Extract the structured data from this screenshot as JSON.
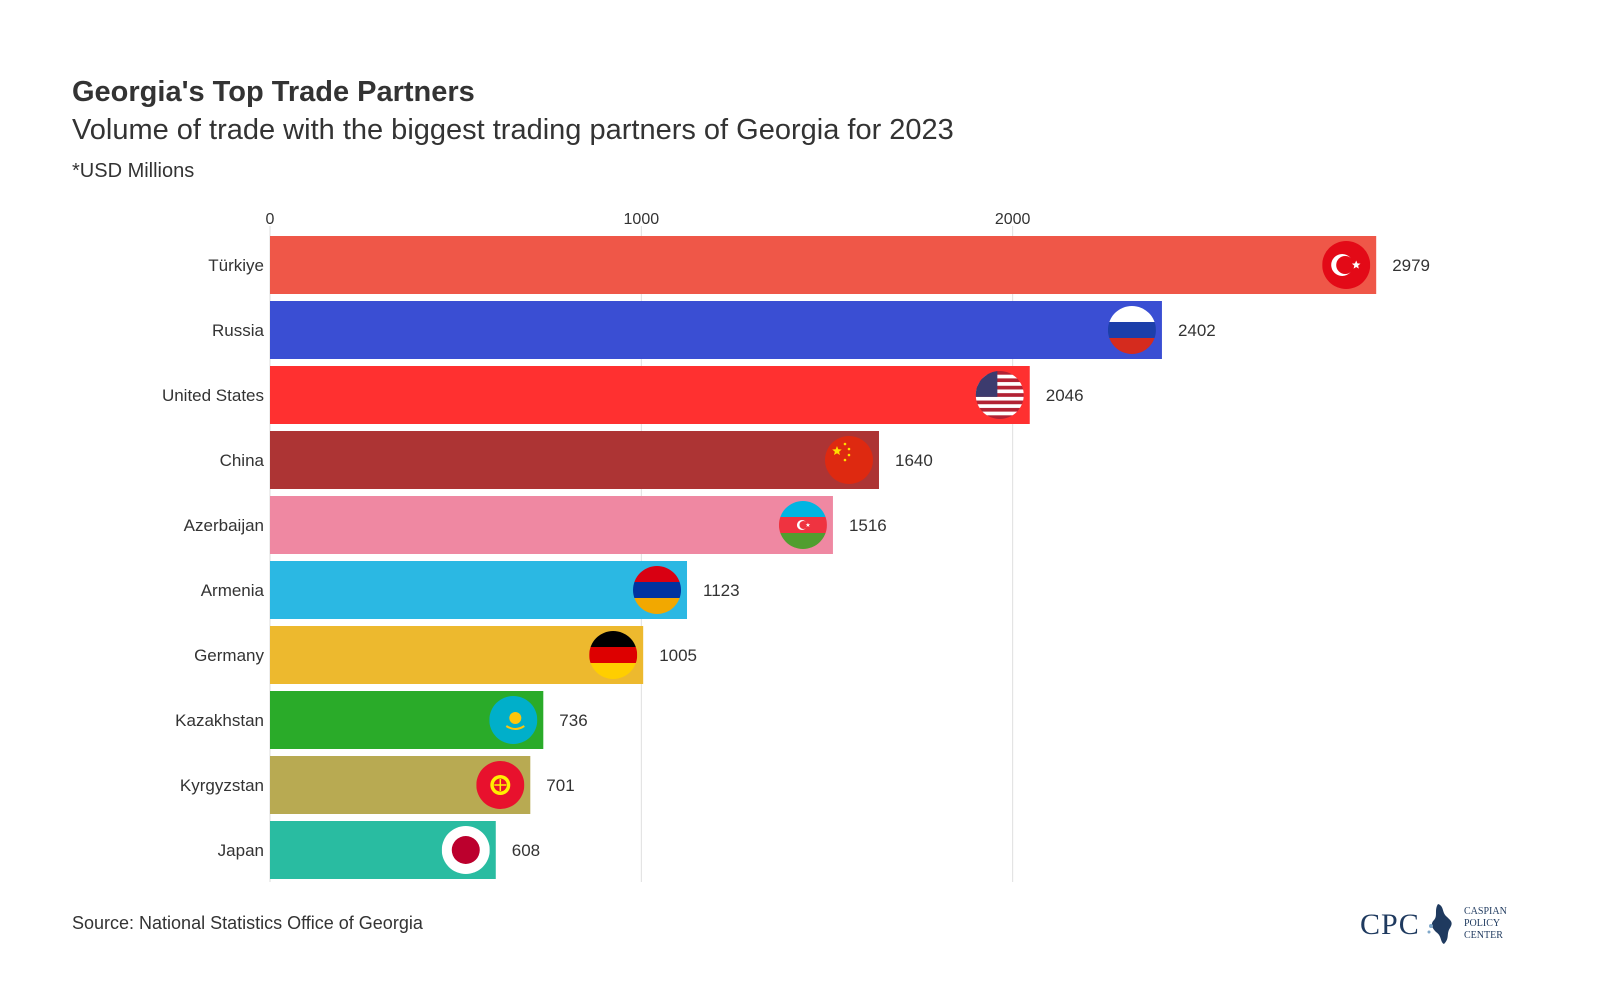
{
  "title": "Georgia's Top Trade Partners",
  "subtitle": "Volume of trade with the biggest trading partners of Georgia for 2023",
  "unit_note": "*USD Millions",
  "source": "Source: National Statistics Office of Georgia",
  "logo": {
    "abbr": "CPC",
    "lines": [
      "CASPIAN",
      "POLICY",
      "CENTER"
    ]
  },
  "chart_data": {
    "type": "bar",
    "orientation": "horizontal",
    "categories": [
      "Türkiye",
      "Russia",
      "United States",
      "China",
      "Azerbaijan",
      "Armenia",
      "Germany",
      "Kazakhstan",
      "Kyrgyzstan",
      "Japan"
    ],
    "values": [
      2979,
      2402,
      2046,
      1640,
      1516,
      1123,
      1005,
      736,
      701,
      608
    ],
    "colors": [
      "#ef5748",
      "#3a4ed3",
      "#ff3030",
      "#ad3434",
      "#ef88a2",
      "#2bb8e3",
      "#edb92e",
      "#2aab29",
      "#b8aa52",
      "#29bca1"
    ],
    "flags": [
      "turkey-flag",
      "russia-flag",
      "usa-flag",
      "china-flag",
      "azerbaijan-flag",
      "armenia-flag",
      "germany-flag",
      "kazakhstan-flag",
      "kyrgyzstan-flag",
      "japan-flag"
    ],
    "xticks": [
      0,
      1000,
      2000
    ],
    "xlim": [
      0,
      3000
    ],
    "grid": true,
    "x_axis_position": "top"
  }
}
